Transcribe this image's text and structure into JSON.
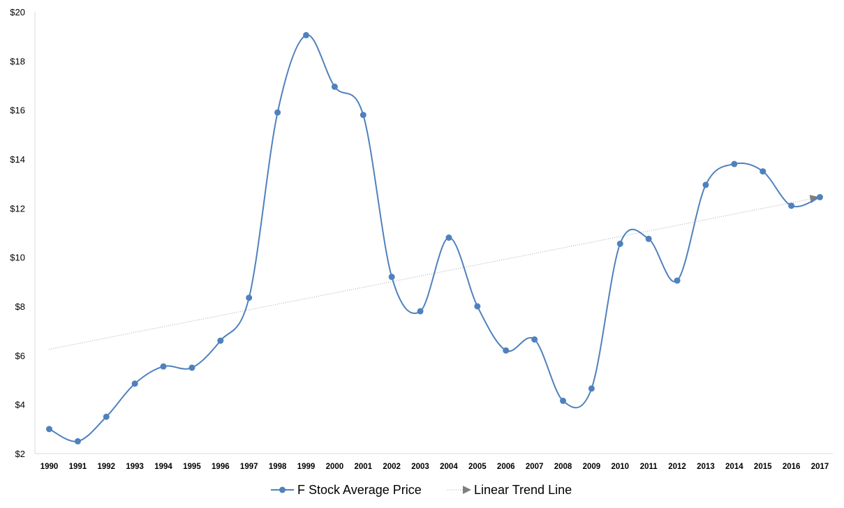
{
  "chart_data": {
    "type": "line",
    "title": "",
    "xlabel": "",
    "ylabel": "",
    "categories": [
      "1990",
      "1991",
      "1992",
      "1993",
      "1994",
      "1995",
      "1996",
      "1997",
      "1998",
      "1999",
      "2000",
      "2001",
      "2002",
      "2003",
      "2004",
      "2005",
      "2006",
      "2007",
      "2008",
      "2009",
      "2010",
      "2011",
      "2012",
      "2013",
      "2014",
      "2015",
      "2016",
      "2017"
    ],
    "series": [
      {
        "name": "F Stock Average Price",
        "color": "#4f81bd",
        "values": [
          3.0,
          2.5,
          3.5,
          4.85,
          5.55,
          5.5,
          6.6,
          8.35,
          15.9,
          19.05,
          16.95,
          15.8,
          9.2,
          7.8,
          10.8,
          8.0,
          6.2,
          6.65,
          4.15,
          4.65,
          10.55,
          10.75,
          9.05,
          12.95,
          13.8,
          13.5,
          12.1,
          12.45
        ]
      },
      {
        "name": "Linear Trend Line",
        "color": "#a6a6a6",
        "start": 6.25,
        "end": 12.45
      }
    ],
    "yticks": [
      "$2",
      "$4",
      "$6",
      "$8",
      "$10",
      "$12",
      "$14",
      "$16",
      "$18",
      "$20"
    ],
    "ylim": [
      2,
      20
    ],
    "grid": false,
    "legend_position": "bottom"
  }
}
